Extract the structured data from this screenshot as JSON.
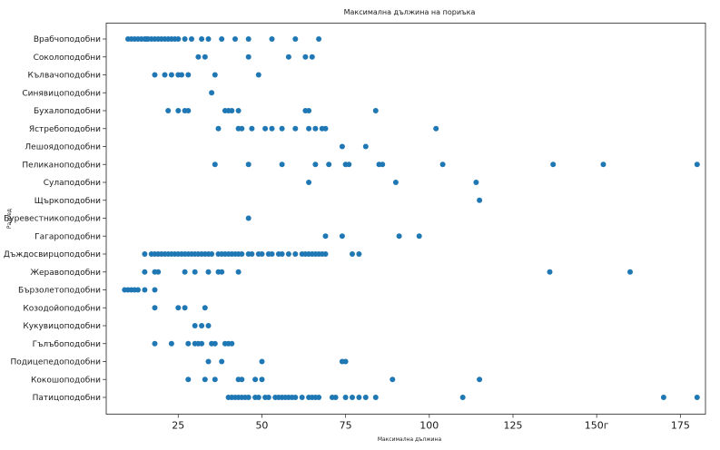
{
  "chart_data": {
    "type": "scatter",
    "title": "Максимална дължина на пориъка",
    "xlabel": "Максимална дължина",
    "ylabel": "Разред",
    "xlim": [
      3.5,
      182.5
    ],
    "x_ticks": [
      "25",
      "50",
      "75",
      "100",
      "125",
      "150г",
      "175"
    ],
    "x_tick_values": [
      25,
      50,
      75,
      100,
      125,
      150,
      175
    ],
    "grid": false,
    "point_color": "#1f77b4",
    "categories": [
      "Врабчоподобни",
      "Соколоподобни",
      "Кълвачоподобни",
      "Синявицоподобни",
      "Бухалоподобни",
      "Ястребоподобни",
      "Лешоядоподобни",
      "Пеликаноподобни",
      "Сулаподобни",
      "Щъркоподобни",
      "Буревестникоподобни",
      "Гагароподобни",
      "Дъждосвирцоподобни",
      "Жеравоподобни",
      "Бързолетоподобни",
      "Козодойоподобни",
      "Кукувицоподобни",
      "Гълъбоподобни",
      "Подицепедоподобни",
      "Кокошоподобни",
      "Патицоподобни"
    ],
    "points": [
      [
        10,
        0
      ],
      [
        11,
        0
      ],
      [
        12,
        0
      ],
      [
        13,
        0
      ],
      [
        14,
        0
      ],
      [
        15,
        0
      ],
      [
        15.5,
        0
      ],
      [
        16,
        0
      ],
      [
        17,
        0
      ],
      [
        18,
        0
      ],
      [
        19,
        0
      ],
      [
        20,
        0
      ],
      [
        21,
        0
      ],
      [
        22,
        0
      ],
      [
        23,
        0
      ],
      [
        24,
        0
      ],
      [
        25,
        0
      ],
      [
        27,
        0
      ],
      [
        29,
        0
      ],
      [
        32,
        0
      ],
      [
        34,
        0
      ],
      [
        38,
        0
      ],
      [
        42,
        0
      ],
      [
        46,
        0
      ],
      [
        53,
        0
      ],
      [
        60,
        0
      ],
      [
        67,
        0
      ],
      [
        31,
        1
      ],
      [
        33,
        1
      ],
      [
        46,
        1
      ],
      [
        58,
        1
      ],
      [
        63,
        1
      ],
      [
        65,
        1
      ],
      [
        18,
        2
      ],
      [
        21,
        2
      ],
      [
        23,
        2
      ],
      [
        25,
        2
      ],
      [
        26,
        2
      ],
      [
        28,
        2
      ],
      [
        36,
        2
      ],
      [
        49,
        2
      ],
      [
        35,
        3
      ],
      [
        22,
        4
      ],
      [
        25,
        4
      ],
      [
        27,
        4
      ],
      [
        28,
        4
      ],
      [
        39,
        4
      ],
      [
        40,
        4
      ],
      [
        41,
        4
      ],
      [
        43,
        4
      ],
      [
        63,
        4
      ],
      [
        64,
        4
      ],
      [
        84,
        4
      ],
      [
        37,
        5
      ],
      [
        43,
        5
      ],
      [
        44,
        5
      ],
      [
        47,
        5
      ],
      [
        51,
        5
      ],
      [
        53,
        5
      ],
      [
        56,
        5
      ],
      [
        60,
        5
      ],
      [
        64,
        5
      ],
      [
        66,
        5
      ],
      [
        68,
        5
      ],
      [
        69,
        5
      ],
      [
        102,
        5
      ],
      [
        74,
        6
      ],
      [
        81,
        6
      ],
      [
        36,
        7
      ],
      [
        46,
        7
      ],
      [
        56,
        7
      ],
      [
        66,
        7
      ],
      [
        70,
        7
      ],
      [
        75,
        7
      ],
      [
        76,
        7
      ],
      [
        85,
        7
      ],
      [
        86,
        7
      ],
      [
        104,
        7
      ],
      [
        137,
        7
      ],
      [
        152,
        7
      ],
      [
        180,
        7
      ],
      [
        64,
        8
      ],
      [
        90,
        8
      ],
      [
        114,
        8
      ],
      [
        115,
        9
      ],
      [
        46,
        10
      ],
      [
        69,
        11
      ],
      [
        74,
        11
      ],
      [
        91,
        11
      ],
      [
        97,
        11
      ],
      [
        15,
        12
      ],
      [
        17,
        12
      ],
      [
        18,
        12
      ],
      [
        19,
        12
      ],
      [
        20,
        12
      ],
      [
        21,
        12
      ],
      [
        22,
        12
      ],
      [
        23,
        12
      ],
      [
        24,
        12
      ],
      [
        25,
        12
      ],
      [
        26,
        12
      ],
      [
        27,
        12
      ],
      [
        28,
        12
      ],
      [
        29,
        12
      ],
      [
        30,
        12
      ],
      [
        31,
        12
      ],
      [
        32,
        12
      ],
      [
        33,
        12
      ],
      [
        34,
        12
      ],
      [
        35,
        12
      ],
      [
        37,
        12
      ],
      [
        38,
        12
      ],
      [
        39,
        12
      ],
      [
        40,
        12
      ],
      [
        41,
        12
      ],
      [
        42,
        12
      ],
      [
        43,
        12
      ],
      [
        44,
        12
      ],
      [
        46,
        12
      ],
      [
        47,
        12
      ],
      [
        49,
        12
      ],
      [
        50,
        12
      ],
      [
        52,
        12
      ],
      [
        53,
        12
      ],
      [
        55,
        12
      ],
      [
        56,
        12
      ],
      [
        58,
        12
      ],
      [
        60,
        12
      ],
      [
        62,
        12
      ],
      [
        63,
        12
      ],
      [
        64,
        12
      ],
      [
        65,
        12
      ],
      [
        66,
        12
      ],
      [
        67,
        12
      ],
      [
        68,
        12
      ],
      [
        69,
        12
      ],
      [
        77,
        12
      ],
      [
        79,
        12
      ],
      [
        15,
        13
      ],
      [
        18,
        13
      ],
      [
        19,
        13
      ],
      [
        27,
        13
      ],
      [
        30,
        13
      ],
      [
        34,
        13
      ],
      [
        37,
        13
      ],
      [
        38,
        13
      ],
      [
        43,
        13
      ],
      [
        136,
        13
      ],
      [
        160,
        13
      ],
      [
        9,
        14
      ],
      [
        10,
        14
      ],
      [
        11,
        14
      ],
      [
        12,
        14
      ],
      [
        13,
        14
      ],
      [
        15,
        14
      ],
      [
        18,
        14
      ],
      [
        18,
        15
      ],
      [
        25,
        15
      ],
      [
        27,
        15
      ],
      [
        33,
        15
      ],
      [
        30,
        16
      ],
      [
        32,
        16
      ],
      [
        34,
        16
      ],
      [
        18,
        17
      ],
      [
        23,
        17
      ],
      [
        28,
        17
      ],
      [
        30,
        17
      ],
      [
        31,
        17
      ],
      [
        32,
        17
      ],
      [
        35,
        17
      ],
      [
        36,
        17
      ],
      [
        39,
        17
      ],
      [
        40,
        17
      ],
      [
        41,
        17
      ],
      [
        34,
        18
      ],
      [
        38,
        18
      ],
      [
        50,
        18
      ],
      [
        74,
        18
      ],
      [
        75,
        18
      ],
      [
        28,
        19
      ],
      [
        33,
        19
      ],
      [
        36,
        19
      ],
      [
        43,
        19
      ],
      [
        44,
        19
      ],
      [
        48,
        19
      ],
      [
        50,
        19
      ],
      [
        89,
        19
      ],
      [
        115,
        19
      ],
      [
        40,
        20
      ],
      [
        41,
        20
      ],
      [
        42,
        20
      ],
      [
        43,
        20
      ],
      [
        44,
        20
      ],
      [
        45,
        20
      ],
      [
        46,
        20
      ],
      [
        48,
        20
      ],
      [
        49,
        20
      ],
      [
        51,
        20
      ],
      [
        52,
        20
      ],
      [
        54,
        20
      ],
      [
        55,
        20
      ],
      [
        56,
        20
      ],
      [
        57,
        20
      ],
      [
        58,
        20
      ],
      [
        59,
        20
      ],
      [
        60,
        20
      ],
      [
        62,
        20
      ],
      [
        64,
        20
      ],
      [
        65,
        20
      ],
      [
        66,
        20
      ],
      [
        67,
        20
      ],
      [
        71,
        20
      ],
      [
        72,
        20
      ],
      [
        75,
        20
      ],
      [
        77,
        20
      ],
      [
        79,
        20
      ],
      [
        81,
        20
      ],
      [
        84,
        20
      ],
      [
        110,
        20
      ],
      [
        170,
        20
      ],
      [
        180,
        20
      ]
    ]
  }
}
